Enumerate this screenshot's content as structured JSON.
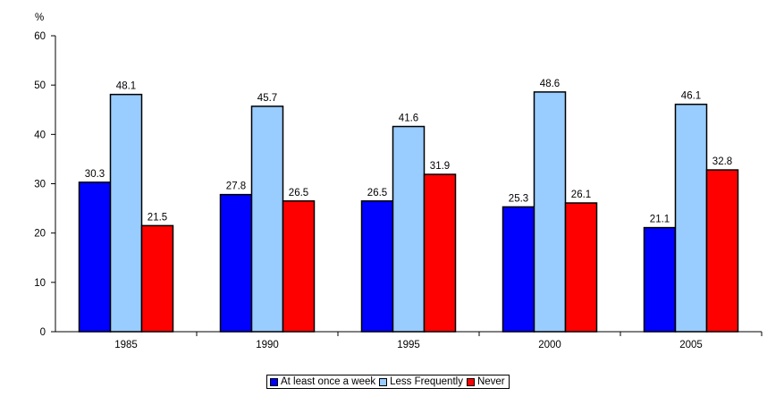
{
  "chart_data": {
    "type": "bar",
    "ylabel": "%",
    "ylim": [
      0,
      60
    ],
    "yticks": [
      0,
      10,
      20,
      30,
      40,
      50,
      60
    ],
    "categories": [
      "1985",
      "1990",
      "1995",
      "2000",
      "2005"
    ],
    "series": [
      {
        "name": "At least once a week",
        "color": "#0000ff",
        "values": [
          30.3,
          27.8,
          26.5,
          25.3,
          21.1
        ]
      },
      {
        "name": "Less Frequently",
        "color": "#99ccff",
        "values": [
          48.1,
          45.7,
          41.6,
          48.6,
          46.1
        ]
      },
      {
        "name": "Never",
        "color": "#ff0000",
        "values": [
          21.5,
          26.5,
          31.9,
          26.1,
          32.8
        ]
      }
    ],
    "grid": false,
    "legend_position": "bottom"
  }
}
